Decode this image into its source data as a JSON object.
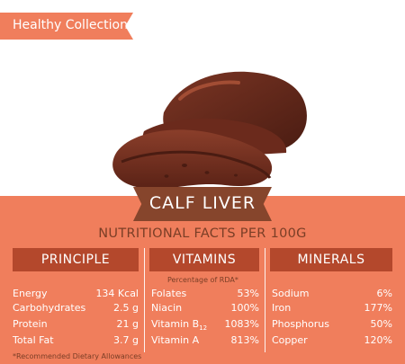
{
  "ribbon": {
    "label": "Healthy Collection"
  },
  "product": {
    "title": "CALF LIVER",
    "image_name": "calf-liver-illustration"
  },
  "subtitle": "NUTRITIONAL FACTS PER 100G",
  "columns": {
    "principle": {
      "header": "PRINCIPLE",
      "items": [
        {
          "label": "Energy",
          "value": "134 Kcal"
        },
        {
          "label": "Carbohydrates",
          "value": "2.5 g"
        },
        {
          "label": "Protein",
          "value": "21 g"
        },
        {
          "label": "Total Fat",
          "value": "3.7 g"
        }
      ]
    },
    "vitamins": {
      "header": "VITAMINS",
      "note": "Percentage of RDA*",
      "items": [
        {
          "label": "Folates",
          "value": "53%"
        },
        {
          "label": "Niacin",
          "value": "100%"
        },
        {
          "label": "Vitamin B",
          "sub": "12",
          "value": "1083%"
        },
        {
          "label": "Vitamin A",
          "value": "813%"
        }
      ]
    },
    "minerals": {
      "header": "MINERALS",
      "items": [
        {
          "label": "Sodium",
          "value": "6%"
        },
        {
          "label": "Iron",
          "value": "177%"
        },
        {
          "label": "Phosphorus",
          "value": "50%"
        },
        {
          "label": "Copper",
          "value": "120%"
        }
      ]
    }
  },
  "footnote": "*Recommended Dietary Allowances",
  "colors": {
    "accent": "#f07e5c",
    "dark_band": "#86452c",
    "header_band": "#b4482c",
    "liver": "#6b2a1c"
  }
}
